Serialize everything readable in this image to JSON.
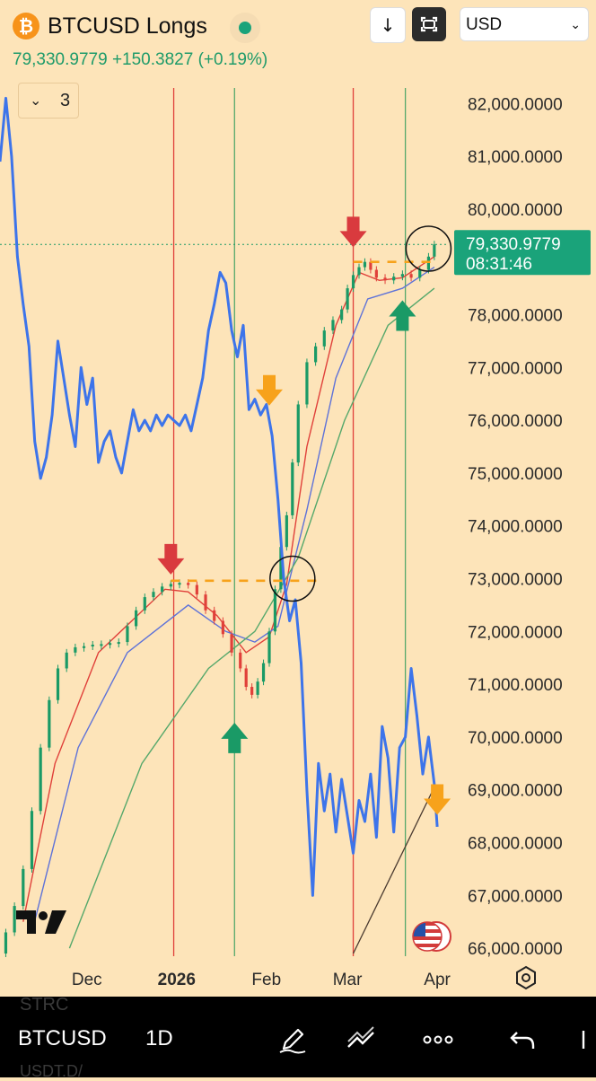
{
  "header": {
    "title": "BTCUSD Longs",
    "currency": "USD",
    "price": "79,330.9779",
    "change": "+150.3827",
    "change_pct": "(+0.19%)",
    "indicator_count": "3"
  },
  "price_tag": {
    "price": "79,330.9779",
    "countdown": "08:31:46"
  },
  "toolbar": {
    "symbol": "BTCUSD",
    "interval": "1D",
    "ghost_top": "STRC",
    "ghost_bottom": "USDT.D/"
  },
  "colors": {
    "bg": "#fde4b9",
    "up": "#1a9a66",
    "down": "#e0403a",
    "blue_line": "#3d74ea",
    "red_ma": "#e0403a",
    "blue_ma": "#5e72d8",
    "green_ma": "#55a86b",
    "arrow_red": "#d93a3e",
    "arrow_green": "#1a9a66",
    "arrow_orange": "#f7a21b",
    "price_tag": "#1aa37a"
  },
  "icons": [
    "bitcoin-icon",
    "download-icon",
    "fullscreen-icon",
    "chevron-down-icon",
    "tradingview-logo",
    "us-flag-icon",
    "settings-icon",
    "pencil-icon",
    "drawing-tools-icon",
    "more-icon",
    "undo-icon"
  ],
  "chart_data": {
    "type": "line",
    "y_axis": {
      "range": [
        65900,
        82600
      ],
      "ticks": [
        "82,000.0000",
        "81,000.0000",
        "80,000.0000",
        "79,000.0000",
        "78,000.0000",
        "77,000.0000",
        "76,000.0000",
        "75,000.0000",
        "74,000.0000",
        "73,000.0000",
        "72,000.0000",
        "71,000.0000",
        "70,000.0000",
        "69,000.0000",
        "68,000.0000",
        "67,000.0000",
        "66,000.0000"
      ],
      "tick_values": [
        82000,
        81000,
        80000,
        79000,
        78000,
        77000,
        76000,
        75000,
        74000,
        73000,
        72000,
        71000,
        70000,
        69000,
        68000,
        67000,
        66000
      ]
    },
    "x_axis": {
      "ticks": [
        "Dec",
        "2026",
        "Feb",
        "Mar",
        "Apr"
      ],
      "tick_dates": [
        "2025-12-01",
        "2026-01-01",
        "2026-02-01",
        "2026-03-01",
        "2026-04-01"
      ],
      "bold": [
        false,
        true,
        false,
        false,
        false
      ]
    },
    "date_range": [
      "2025-11-01",
      "2026-04-05"
    ],
    "last_price": 79330.9779,
    "candles": [
      [
        "2025-11-01",
        65900
      ],
      [
        "2025-11-03",
        66300
      ],
      [
        "2025-11-06",
        66800
      ],
      [
        "2025-11-09",
        67500
      ],
      [
        "2025-11-12",
        68600
      ],
      [
        "2025-11-15",
        69800
      ],
      [
        "2025-11-18",
        70700
      ],
      [
        "2025-11-21",
        71300
      ],
      [
        "2025-11-24",
        71600
      ],
      [
        "2025-11-27",
        71700
      ],
      [
        "2025-11-30",
        71720
      ],
      [
        "2025-12-03",
        71750
      ],
      [
        "2025-12-06",
        71760
      ],
      [
        "2025-12-09",
        71780
      ],
      [
        "2025-12-12",
        71800
      ],
      [
        "2025-12-15",
        72100
      ],
      [
        "2025-12-18",
        72400
      ],
      [
        "2025-12-21",
        72650
      ],
      [
        "2025-12-24",
        72750
      ],
      [
        "2025-12-27",
        72850
      ],
      [
        "2025-12-30",
        72900
      ],
      [
        "2026-01-02",
        72920
      ],
      [
        "2026-01-05",
        72880
      ],
      [
        "2026-01-08",
        72700
      ],
      [
        "2026-01-11",
        72400
      ],
      [
        "2026-01-14",
        72200
      ],
      [
        "2026-01-17",
        71950
      ],
      [
        "2026-01-20",
        71600
      ],
      [
        "2026-01-23",
        71300
      ],
      [
        "2026-01-25",
        70950
      ],
      [
        "2026-01-27",
        70800
      ],
      [
        "2026-01-29",
        71050
      ],
      [
        "2026-01-31",
        71400
      ],
      [
        "2026-02-02",
        72000
      ],
      [
        "2026-02-04",
        72800
      ],
      [
        "2026-02-06",
        73600
      ],
      [
        "2026-02-08",
        74200
      ],
      [
        "2026-02-10",
        75200
      ],
      [
        "2026-02-12",
        76300
      ],
      [
        "2026-02-15",
        77100
      ],
      [
        "2026-02-18",
        77400
      ],
      [
        "2026-02-21",
        77700
      ],
      [
        "2026-02-24",
        77900
      ],
      [
        "2026-02-27",
        78100
      ],
      [
        "2026-03-01",
        78500
      ],
      [
        "2026-03-03",
        78750
      ],
      [
        "2026-03-05",
        78900
      ],
      [
        "2026-03-07",
        79000
      ],
      [
        "2026-03-09",
        78850
      ],
      [
        "2026-03-11",
        78700
      ],
      [
        "2026-03-14",
        78650
      ],
      [
        "2026-03-17",
        78720
      ],
      [
        "2026-03-20",
        78770
      ],
      [
        "2026-03-23",
        78700
      ],
      [
        "2026-03-26",
        78850
      ],
      [
        "2026-03-29",
        79100
      ],
      [
        "2026-03-31",
        79331
      ]
    ],
    "series": [
      {
        "values": [
          [
            "2025-11-01",
            80900
          ],
          [
            "2025-11-03",
            82100
          ],
          [
            "2025-11-05",
            81000
          ],
          [
            "2025-11-07",
            79100
          ],
          [
            "2025-11-09",
            78200
          ],
          [
            "2025-11-11",
            77400
          ],
          [
            "2025-11-13",
            75600
          ],
          [
            "2025-11-15",
            74900
          ],
          [
            "2025-11-17",
            75300
          ],
          [
            "2025-11-19",
            76100
          ],
          [
            "2025-11-21",
            77500
          ],
          [
            "2025-11-23",
            76800
          ],
          [
            "2025-11-25",
            76100
          ],
          [
            "2025-11-27",
            75500
          ],
          [
            "2025-11-29",
            77000
          ],
          [
            "2025-12-01",
            76300
          ],
          [
            "2025-12-03",
            76800
          ],
          [
            "2025-12-05",
            75200
          ],
          [
            "2025-12-07",
            75600
          ],
          [
            "2025-12-09",
            75800
          ],
          [
            "2025-12-11",
            75300
          ],
          [
            "2025-12-13",
            75000
          ],
          [
            "2025-12-15",
            75600
          ],
          [
            "2025-12-17",
            76200
          ],
          [
            "2025-12-19",
            75800
          ],
          [
            "2025-12-21",
            76000
          ],
          [
            "2025-12-23",
            75800
          ],
          [
            "2025-12-25",
            76100
          ],
          [
            "2025-12-27",
            75900
          ],
          [
            "2025-12-29",
            76100
          ],
          [
            "2025-12-31",
            76000
          ],
          [
            "2026-01-02",
            75900
          ],
          [
            "2026-01-04",
            76100
          ],
          [
            "2026-01-06",
            75800
          ],
          [
            "2026-01-08",
            76300
          ],
          [
            "2026-01-10",
            76800
          ],
          [
            "2026-01-12",
            77700
          ],
          [
            "2026-01-14",
            78200
          ],
          [
            "2026-01-16",
            78800
          ],
          [
            "2026-01-18",
            78600
          ],
          [
            "2026-01-20",
            77700
          ],
          [
            "2026-01-22",
            77200
          ],
          [
            "2026-01-24",
            77800
          ],
          [
            "2026-01-26",
            76200
          ],
          [
            "2026-01-28",
            76400
          ],
          [
            "2026-01-30",
            76100
          ],
          [
            "2026-02-01",
            76300
          ],
          [
            "2026-02-03",
            75700
          ],
          [
            "2026-02-05",
            74500
          ],
          [
            "2026-02-07",
            73000
          ],
          [
            "2026-02-09",
            72200
          ],
          [
            "2026-02-11",
            72600
          ],
          [
            "2026-02-13",
            71400
          ],
          [
            "2026-02-15",
            69000
          ],
          [
            "2026-02-17",
            67000
          ],
          [
            "2026-02-19",
            69500
          ],
          [
            "2026-02-21",
            68600
          ],
          [
            "2026-02-23",
            69300
          ],
          [
            "2026-02-25",
            68200
          ],
          [
            "2026-02-27",
            69200
          ],
          [
            "2026-03-01",
            68500
          ],
          [
            "2026-03-03",
            67800
          ],
          [
            "2026-03-05",
            68800
          ],
          [
            "2026-03-07",
            68400
          ],
          [
            "2026-03-09",
            69300
          ],
          [
            "2026-03-11",
            68100
          ],
          [
            "2026-03-13",
            70200
          ],
          [
            "2026-03-15",
            69600
          ],
          [
            "2026-03-17",
            68200
          ],
          [
            "2026-03-19",
            69800
          ],
          [
            "2026-03-21",
            70000
          ],
          [
            "2026-03-23",
            71300
          ],
          [
            "2026-03-25",
            70400
          ],
          [
            "2026-03-27",
            69300
          ],
          [
            "2026-03-29",
            70000
          ],
          [
            "2026-03-31",
            69100
          ],
          [
            "2026-04-01",
            68300
          ]
        ]
      },
      {
        "values": [
          [
            "2025-11-09",
            66500
          ],
          [
            "2025-11-20",
            69500
          ],
          [
            "2025-12-05",
            71600
          ],
          [
            "2025-12-28",
            72800
          ],
          [
            "2026-01-05",
            72750
          ],
          [
            "2026-01-15",
            72300
          ],
          [
            "2026-01-25",
            71600
          ],
          [
            "2026-02-02",
            71900
          ],
          [
            "2026-02-08",
            72900
          ],
          [
            "2026-02-15",
            75500
          ],
          [
            "2026-02-25",
            77800
          ],
          [
            "2026-03-05",
            78800
          ],
          [
            "2026-03-12",
            78650
          ],
          [
            "2026-03-20",
            78700
          ],
          [
            "2026-03-31",
            79100
          ]
        ]
      },
      {
        "values": [
          [
            "2025-11-12",
            66300
          ],
          [
            "2025-11-28",
            69800
          ],
          [
            "2025-12-15",
            71600
          ],
          [
            "2026-01-05",
            72500
          ],
          [
            "2026-01-18",
            72000
          ],
          [
            "2026-01-28",
            71800
          ],
          [
            "2026-02-05",
            72100
          ],
          [
            "2026-02-15",
            74300
          ],
          [
            "2026-02-25",
            76800
          ],
          [
            "2026-03-08",
            78300
          ],
          [
            "2026-03-20",
            78500
          ],
          [
            "2026-03-31",
            78900
          ]
        ]
      },
      {
        "values": [
          [
            "2025-11-25",
            66000
          ],
          [
            "2025-12-20",
            69500
          ],
          [
            "2026-01-12",
            71300
          ],
          [
            "2026-01-28",
            72000
          ],
          [
            "2026-02-12",
            73400
          ],
          [
            "2026-02-28",
            76000
          ],
          [
            "2026-03-15",
            77800
          ],
          [
            "2026-03-31",
            78500
          ]
        ]
      }
    ],
    "annotations": {
      "vlines_red": [
        "2025-12-31",
        "2026-03-03"
      ],
      "vlines_green": [
        "2026-01-21",
        "2026-03-21"
      ],
      "resistance_dashes": [
        {
          "from": "2025-12-30",
          "to": "2026-02-19",
          "y": 72960
        },
        {
          "from": "2026-03-03",
          "to": "2026-04-01",
          "y": 79000
        }
      ],
      "circles": [
        {
          "date": "2026-02-10",
          "y": 73000
        },
        {
          "date": "2026-03-29",
          "y": 79250
        }
      ],
      "arrows": [
        {
          "color": "red",
          "dir": "down",
          "date": "2025-12-30",
          "y": 73350
        },
        {
          "color": "red",
          "dir": "down",
          "date": "2026-03-03",
          "y": 79550
        },
        {
          "color": "green",
          "dir": "up",
          "date": "2026-01-21",
          "y": 70000
        },
        {
          "color": "green",
          "dir": "up",
          "date": "2026-03-20",
          "y": 78000
        },
        {
          "color": "orange",
          "dir": "down",
          "date": "2026-02-02",
          "y": 76550
        },
        {
          "color": "orange",
          "dir": "down",
          "date": "2026-04-01",
          "y": 68800
        }
      ],
      "trendline": {
        "from": [
          "2026-03-03",
          65900
        ],
        "to": [
          "2026-03-31",
          69050
        ]
      }
    },
    "grid": false,
    "legend": "none"
  }
}
